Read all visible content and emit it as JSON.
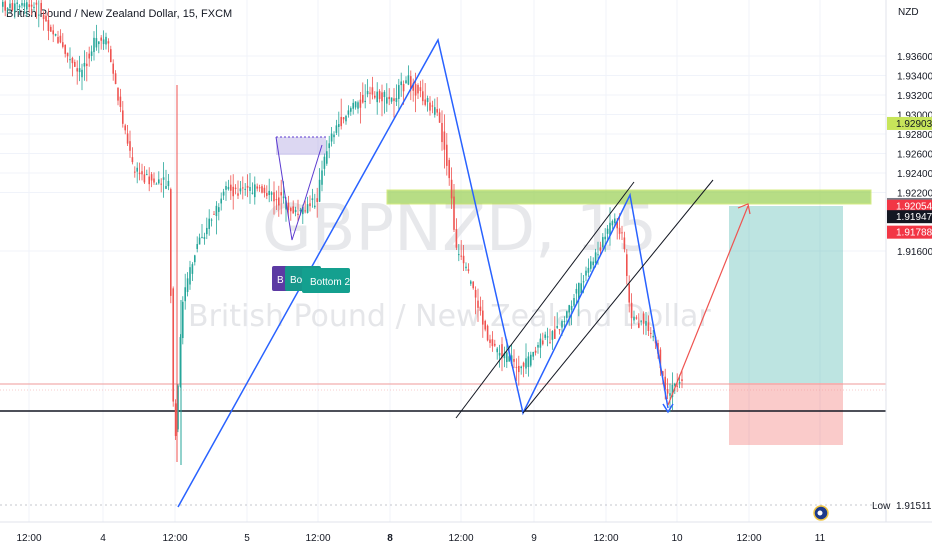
{
  "header": {
    "title": "British Pound / New Zealand Dollar, 15, FXCM"
  },
  "watermark": {
    "symbol": "GBPNZD, 15",
    "name": "British Pound / New Zealand Dollar"
  },
  "chart_data": {
    "type": "candlestick",
    "currency": "NZD",
    "ylim": [
      1.9145,
      1.9395
    ],
    "y_ticks": [
      "1.93600",
      "1.93400",
      "1.93200",
      "1.93000",
      "1.92800",
      "1.92600",
      "1.92400",
      "1.92200",
      "1.91600"
    ],
    "x_ticks": [
      "12:00",
      "4",
      "12:00",
      "5",
      "12:00",
      "8",
      "12:00",
      "9",
      "12:00",
      "10",
      "12:00",
      "11"
    ],
    "price_labels": [
      {
        "value": "1.92903",
        "color": "#c7e55a",
        "text_color": "#131722"
      },
      {
        "value": "1.92072",
        "color": "#787b86",
        "text_color": "#ffffff"
      },
      {
        "value": "1.92054",
        "color": "#f23645",
        "text_color": "#ffffff",
        "sub": "00:05"
      },
      {
        "value": "1.91947",
        "color": "#131722",
        "text_color": "#ffffff"
      },
      {
        "value": "1.91788",
        "color": "#f23645",
        "text_color": "#ffffff"
      }
    ],
    "low_label": {
      "label": "Low",
      "value": "1.91511"
    },
    "annotations": [
      "B",
      "Bott",
      "Bottom 2"
    ],
    "colors": {
      "up": "#26a69a",
      "down": "#ef5350",
      "trend": "#2962ff",
      "zone": "#9fd25d"
    }
  }
}
